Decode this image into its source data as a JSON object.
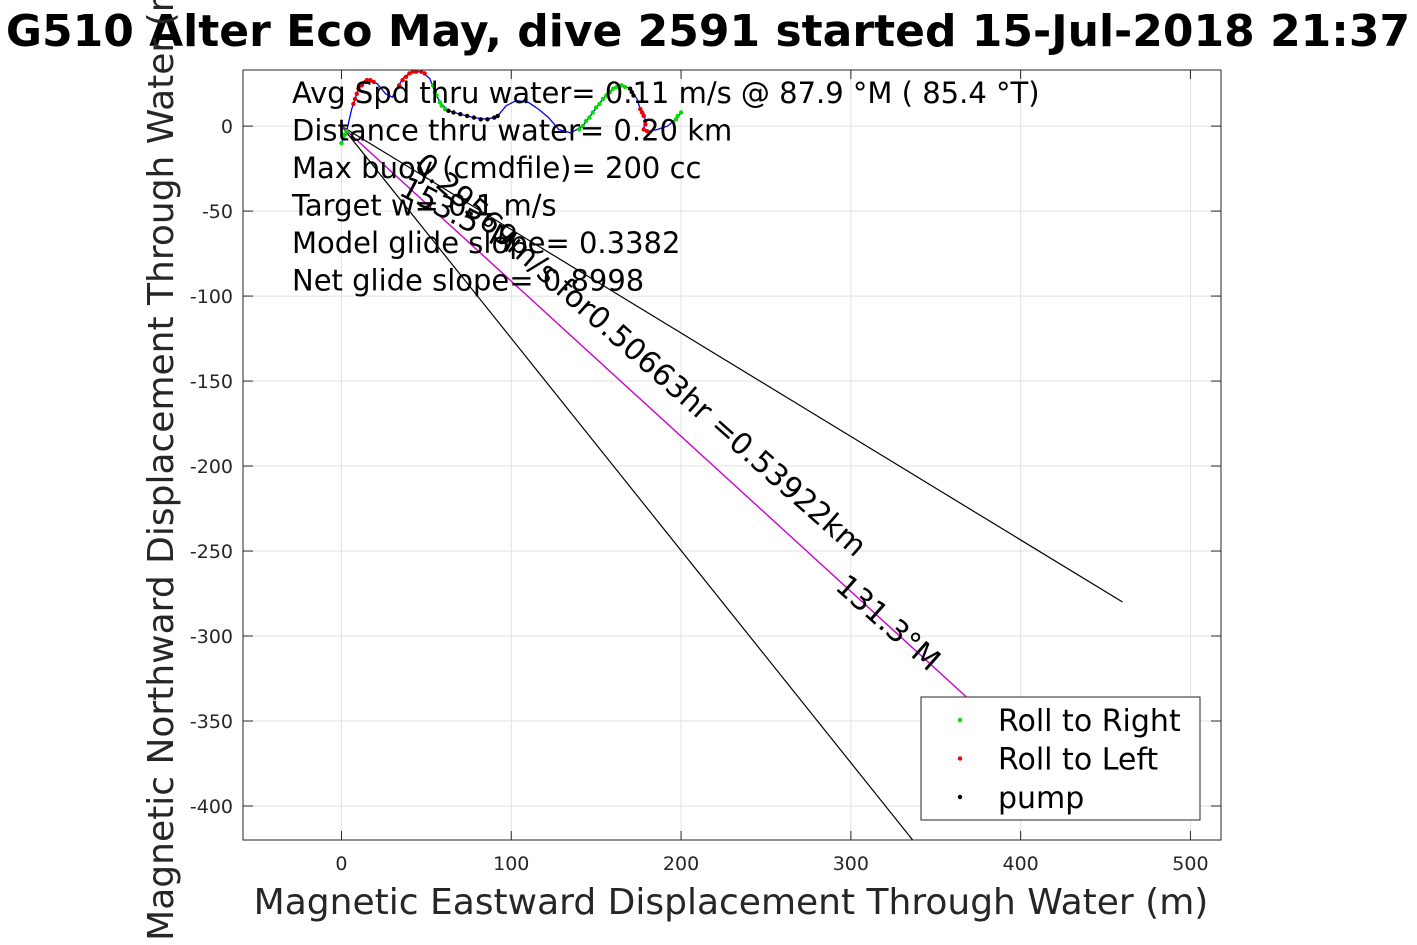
{
  "chart_data": {
    "type": "scatter",
    "title": "G510 Alter Eco May, dive 2591 started 15-Jul-2018 21:37",
    "xlabel": "Magnetic Eastward Displacement Through Water (m)",
    "ylabel": "Magnetic Northward Displacement Through Water (m)",
    "xlim": [
      -58,
      518
    ],
    "ylim": [
      -420,
      33
    ],
    "xticks": [
      0,
      100,
      200,
      300,
      400,
      500
    ],
    "yticks": [
      0,
      -50,
      -100,
      -150,
      -200,
      -250,
      -300,
      -350,
      -400
    ],
    "grid": true,
    "legend_position": "bottom-right",
    "legend": [
      "Roll to Right",
      "Roll to Left",
      "pump"
    ],
    "colors": {
      "roll_right": "#00dd00",
      "roll_left": "#ee0000",
      "pump": "#000000",
      "track": "#0000ff",
      "cone": "#000000",
      "heading_line": "#cc00cc",
      "grid": "#e2e2e2"
    },
    "info_lines": [
      "Avg Spd thru water= 0.11 m/s @  87.9 °M ( 85.4 °T)",
      "Distance thru water= 0.20 km",
      "Max buoy (cmdfile)= 200 cc",
      "Target w= 0.1 m/s",
      "Model glide slope= 0.3382",
      "Net glide slope= 0.8998"
    ],
    "track": [
      [
        0,
        -10
      ],
      [
        3,
        -3
      ],
      [
        6,
        10
      ],
      [
        10,
        22
      ],
      [
        15,
        27
      ],
      [
        21,
        25
      ],
      [
        26,
        19
      ],
      [
        30,
        17
      ],
      [
        33,
        23
      ],
      [
        37,
        29
      ],
      [
        42,
        32
      ],
      [
        47,
        32
      ],
      [
        52,
        28
      ],
      [
        55,
        20
      ],
      [
        58,
        14
      ],
      [
        63,
        9
      ],
      [
        70,
        7
      ],
      [
        78,
        5
      ],
      [
        86,
        4
      ],
      [
        92,
        6
      ],
      [
        97,
        12
      ],
      [
        103,
        15
      ],
      [
        110,
        14
      ],
      [
        116,
        10
      ],
      [
        122,
        5
      ],
      [
        128,
        -2
      ],
      [
        135,
        -4
      ],
      [
        142,
        0
      ],
      [
        148,
        8
      ],
      [
        154,
        16
      ],
      [
        160,
        22
      ],
      [
        165,
        24
      ],
      [
        170,
        22
      ],
      [
        174,
        16
      ],
      [
        176,
        10
      ],
      [
        178,
        8
      ],
      [
        179,
        3
      ],
      [
        178,
        -2
      ],
      [
        181,
        -3
      ],
      [
        186,
        -2
      ],
      [
        192,
        0
      ],
      [
        197,
        4
      ],
      [
        200,
        8
      ]
    ],
    "roll_right_points": [
      [
        0,
        -10
      ],
      [
        1,
        -7
      ],
      [
        2,
        -5
      ],
      [
        3,
        -3
      ],
      [
        54,
        24
      ],
      [
        55,
        20
      ],
      [
        56,
        18
      ],
      [
        58,
        14
      ],
      [
        59,
        12
      ],
      [
        61,
        10
      ],
      [
        140,
        -2
      ],
      [
        142,
        0
      ],
      [
        144,
        3
      ],
      [
        146,
        5
      ],
      [
        148,
        8
      ],
      [
        150,
        11
      ],
      [
        152,
        13
      ],
      [
        154,
        16
      ],
      [
        156,
        18
      ],
      [
        158,
        20
      ],
      [
        160,
        22
      ],
      [
        162,
        23
      ],
      [
        165,
        24
      ],
      [
        167,
        23
      ],
      [
        197,
        4
      ],
      [
        198,
        6
      ],
      [
        200,
        8
      ]
    ],
    "roll_left_points": [
      [
        7,
        13
      ],
      [
        8,
        16
      ],
      [
        9,
        19
      ],
      [
        10,
        22
      ],
      [
        12,
        24
      ],
      [
        14,
        26
      ],
      [
        15,
        27
      ],
      [
        17,
        27
      ],
      [
        19,
        26
      ],
      [
        34,
        24
      ],
      [
        36,
        27
      ],
      [
        38,
        29
      ],
      [
        40,
        31
      ],
      [
        42,
        32
      ],
      [
        44,
        32
      ],
      [
        47,
        32
      ],
      [
        49,
        31
      ],
      [
        176,
        10
      ],
      [
        177,
        8
      ],
      [
        178,
        6
      ],
      [
        179,
        3
      ],
      [
        179,
        1
      ],
      [
        178,
        -2
      ],
      [
        180,
        -3
      ]
    ],
    "pump_points": [
      [
        63,
        9
      ],
      [
        66,
        8
      ],
      [
        70,
        7
      ],
      [
        74,
        6
      ],
      [
        78,
        5
      ],
      [
        82,
        4
      ],
      [
        86,
        4
      ],
      [
        90,
        5
      ],
      [
        92,
        6
      ],
      [
        170,
        22
      ],
      [
        171,
        20
      ],
      [
        172,
        18
      ]
    ],
    "cone_lines": [
      {
        "from": [
          0,
          0
        ],
        "to": [
          460,
          -280
        ]
      },
      {
        "from": [
          0,
          0
        ],
        "to": [
          338,
          -422
        ]
      }
    ],
    "heading_line": {
      "from": [
        0,
        0
      ],
      "to": [
        400,
        -365
      ]
    },
    "annotations": [
      {
        "text": "0.29569m/s for0.50663hr =0.53922km",
        "at": [
          42,
          -24
        ],
        "angle": 41.5
      },
      {
        "text": "131.3°M",
        "at": [
          290,
          -272
        ],
        "angle": 41.5
      },
      {
        "text": "153.5°M",
        "at": [
          33,
          -40
        ],
        "angle": 28
      }
    ]
  }
}
